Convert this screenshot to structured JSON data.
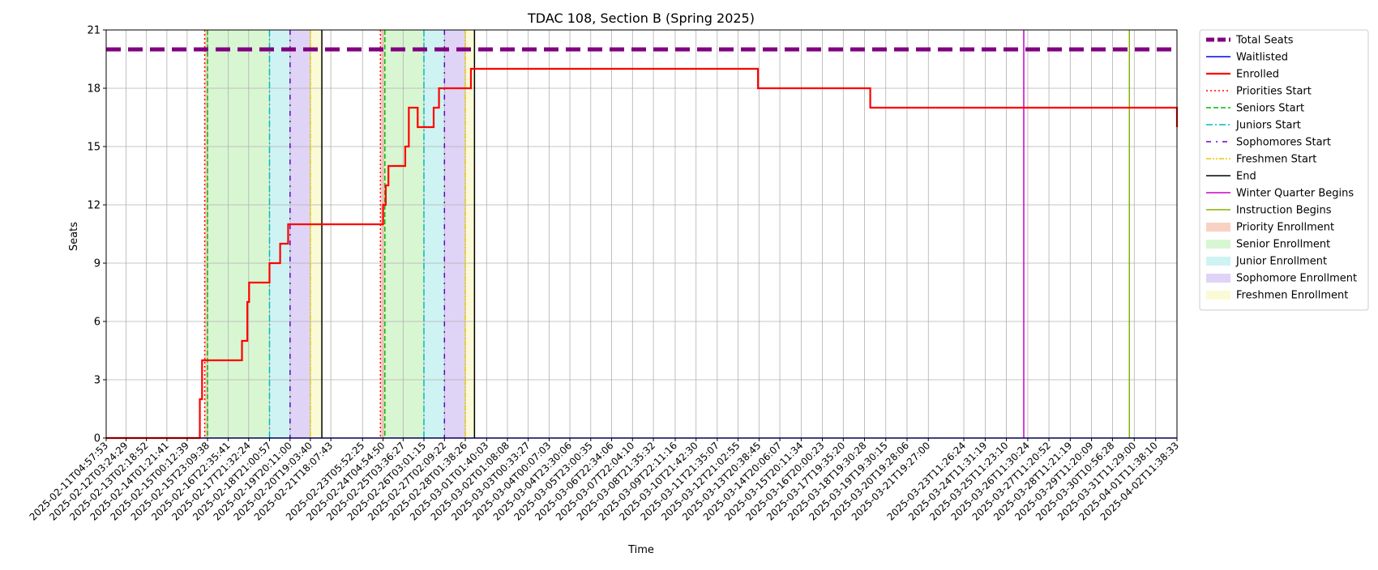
{
  "chart_data": {
    "type": "line",
    "title": "TDAC 108, Section B (Spring 2025)",
    "xlabel": "Time",
    "ylabel": "Seats",
    "ylim": [
      0,
      21
    ],
    "yticks": [
      0,
      3,
      6,
      9,
      12,
      15,
      18,
      21
    ],
    "xlim": [
      "2025-02-11T04:57:53",
      "2025-04-02T11:38:33"
    ],
    "grid": true,
    "legend_position": "outside-right",
    "xtick_labels": [
      "2025-02-11T04:57:53",
      "2025-02-12T03:24:29",
      "2025-02-13T02:18:52",
      "2025-02-14T01:21:41",
      "2025-02-15T00:12:39",
      "2025-02-15T23:09:38",
      "2025-02-16T22:35:41",
      "2025-02-17T21:32:24",
      "2025-02-18T21:00:57",
      "2025-02-19T20:11:00",
      "2025-02-20T19:03:40",
      "2025-02-21T18:07:43",
      "2025-02-23T05:52:25",
      "2025-02-24T04:54:50",
      "2025-02-25T03:36:27",
      "2025-02-26T03:01:15",
      "2025-02-27T02:09:22",
      "2025-02-28T01:38:26",
      "2025-03-01T01:40:03",
      "2025-03-02T01:08:08",
      "2025-03-03T00:33:27",
      "2025-03-04T00:07:03",
      "2025-03-04T23:30:06",
      "2025-03-05T23:00:35",
      "2025-03-06T22:34:06",
      "2025-03-07T22:04:10",
      "2025-03-08T21:35:32",
      "2025-03-09T22:11:16",
      "2025-03-10T21:42:30",
      "2025-03-11T21:35:07",
      "2025-03-12T21:02:55",
      "2025-03-13T20:38:45",
      "2025-03-14T20:06:07",
      "2025-03-15T20:11:34",
      "2025-03-16T20:00:23",
      "2025-03-17T19:35:20",
      "2025-03-18T19:30:28",
      "2025-03-19T19:30:15",
      "2025-03-20T19:28:06",
      "2025-03-21T19:27:00",
      "2025-03-23T11:26:24",
      "2025-03-24T11:31:19",
      "2025-03-25T11:23:10",
      "2025-03-26T11:30:24",
      "2025-03-27T11:20:52",
      "2025-03-28T11:21:19",
      "2025-03-29T11:20:09",
      "2025-03-30T10:56:28",
      "2025-03-31T11:29:00",
      "2025-04-01T11:38:10",
      "2025-04-02T11:38:33"
    ],
    "series": [
      {
        "name": "Total Seats",
        "color": "#800080",
        "style": "dashed-thick",
        "x": [
          "2025-02-11T04:57:53",
          "2025-04-02T11:38:33"
        ],
        "values": [
          20,
          20
        ]
      },
      {
        "name": "Waitlisted",
        "color": "#0000ff",
        "style": "solid",
        "x": [
          "2025-02-11T04:57:53",
          "2025-04-02T11:38:33"
        ],
        "values": [
          0,
          0
        ]
      },
      {
        "name": "Enrolled",
        "color": "#ff0000",
        "style": "step",
        "x": [
          "2025-02-11T04:57:53",
          "2025-02-15T14:30:00",
          "2025-02-15T17:00:00",
          "2025-02-16T00:00:00",
          "2025-02-17T14:00:00",
          "2025-02-17T20:00:00",
          "2025-02-17T22:00:00",
          "2025-02-18T21:00:00",
          "2025-02-19T09:00:00",
          "2025-02-19T18:00:00",
          "2025-02-24T05:00:00",
          "2025-02-24T08:00:00",
          "2025-02-24T11:00:00",
          "2025-02-25T06:00:00",
          "2025-02-25T10:00:00",
          "2025-02-25T20:00:00",
          "2025-02-26T14:00:00",
          "2025-02-26T20:00:00",
          "2025-02-27T09:00:00",
          "2025-02-28T08:00:00",
          "2025-03-13T19:30:00",
          "2025-03-19T02:00:00",
          "2025-04-02T11:38:33"
        ],
        "values": [
          0,
          2,
          4,
          4,
          5,
          7,
          8,
          9,
          10,
          11,
          12,
          13,
          14,
          15,
          17,
          16,
          17,
          18,
          18,
          19,
          18,
          17,
          16
        ]
      }
    ],
    "vertical_lines": [
      {
        "name": "Priorities Start",
        "color": "#ff0000",
        "style": "dotted",
        "x": [
          "2025-02-15T20:00:00",
          "2025-02-24T02:00:00"
        ]
      },
      {
        "name": "Seniors Start",
        "color": "#00bb00",
        "style": "dashed",
        "x": [
          "2025-02-15T23:09:38",
          "2025-02-24T07:00:00"
        ]
      },
      {
        "name": "Juniors Start",
        "color": "#00bbbb",
        "style": "dashdot",
        "x": [
          "2025-02-18T21:00:57",
          "2025-02-26T03:01:15"
        ]
      },
      {
        "name": "Sophomores Start",
        "color": "#6a00d0",
        "style": "dashdot-sparse",
        "x": [
          "2025-02-19T20:11:00",
          "2025-02-27T02:09:22"
        ]
      },
      {
        "name": "Freshmen Start",
        "color": "#e6c800",
        "style": "dashdotdot",
        "x": [
          "2025-02-20T19:03:40",
          "2025-02-28T01:38:26"
        ]
      },
      {
        "name": "End",
        "color": "#000000",
        "style": "solid",
        "x": [
          "2025-02-21T08:00:00",
          "2025-02-28T12:00:00"
        ]
      },
      {
        "name": "Winter Quarter Begins",
        "color": "#cc00cc",
        "style": "solid",
        "x": [
          "2025-03-26T07:00:00"
        ]
      },
      {
        "name": "Instruction Begins",
        "color": "#88b000",
        "style": "solid",
        "x": [
          "2025-03-31T06:00:00"
        ]
      }
    ],
    "shaded_regions": [
      {
        "name": "Priority Enrollment",
        "color": "#f7d2c2",
        "ranges": [
          [
            "2025-02-15T20:00:00",
            "2025-02-15T23:09:38"
          ],
          [
            "2025-02-24T02:00:00",
            "2025-02-24T07:00:00"
          ]
        ]
      },
      {
        "name": "Senior Enrollment",
        "color": "#d9f6d2",
        "ranges": [
          [
            "2025-02-15T23:09:38",
            "2025-02-18T21:00:57"
          ],
          [
            "2025-02-24T07:00:00",
            "2025-02-26T03:01:15"
          ]
        ]
      },
      {
        "name": "Junior Enrollment",
        "color": "#cff3f3",
        "ranges": [
          [
            "2025-02-18T21:00:57",
            "2025-02-19T20:11:00"
          ],
          [
            "2025-02-26T03:01:15",
            "2025-02-27T02:09:22"
          ]
        ]
      },
      {
        "name": "Sophomore Enrollment",
        "color": "#dfd4f6",
        "ranges": [
          [
            "2025-02-19T20:11:00",
            "2025-02-20T19:03:40"
          ],
          [
            "2025-02-27T02:09:22",
            "2025-02-28T01:38:26"
          ]
        ]
      },
      {
        "name": "Freshmen Enrollment",
        "color": "#fafad6",
        "ranges": [
          [
            "2025-02-20T19:03:40",
            "2025-02-21T08:00:00"
          ],
          [
            "2025-02-28T01:38:26",
            "2025-02-28T12:00:00"
          ]
        ]
      }
    ],
    "legend": [
      {
        "label": "Total Seats",
        "kind": "line",
        "color": "#800080",
        "style": "dashed-thick"
      },
      {
        "label": "Waitlisted",
        "kind": "line",
        "color": "#0000ff",
        "style": "solid"
      },
      {
        "label": "Enrolled",
        "kind": "line",
        "color": "#ff0000",
        "style": "solid-thick"
      },
      {
        "label": "Priorities Start",
        "kind": "line",
        "color": "#ff0000",
        "style": "dotted"
      },
      {
        "label": "Seniors Start",
        "kind": "line",
        "color": "#00bb00",
        "style": "dashed"
      },
      {
        "label": "Juniors Start",
        "kind": "line",
        "color": "#00bbbb",
        "style": "dashdot"
      },
      {
        "label": "Sophomores Start",
        "kind": "line",
        "color": "#6a00d0",
        "style": "dashdot-sparse"
      },
      {
        "label": "Freshmen Start",
        "kind": "line",
        "color": "#e6c800",
        "style": "dashdotdot"
      },
      {
        "label": "End",
        "kind": "line",
        "color": "#000000",
        "style": "solid"
      },
      {
        "label": "Winter Quarter Begins",
        "kind": "line",
        "color": "#cc00cc",
        "style": "solid"
      },
      {
        "label": "Instruction Begins",
        "kind": "line",
        "color": "#88b000",
        "style": "solid"
      },
      {
        "label": "Priority Enrollment",
        "kind": "patch",
        "color": "#f7d2c2"
      },
      {
        "label": "Senior Enrollment",
        "kind": "patch",
        "color": "#d9f6d2"
      },
      {
        "label": "Junior Enrollment",
        "kind": "patch",
        "color": "#cff3f3"
      },
      {
        "label": "Sophomore Enrollment",
        "kind": "patch",
        "color": "#dfd4f6"
      },
      {
        "label": "Freshmen Enrollment",
        "kind": "patch",
        "color": "#fafad6"
      }
    ]
  }
}
